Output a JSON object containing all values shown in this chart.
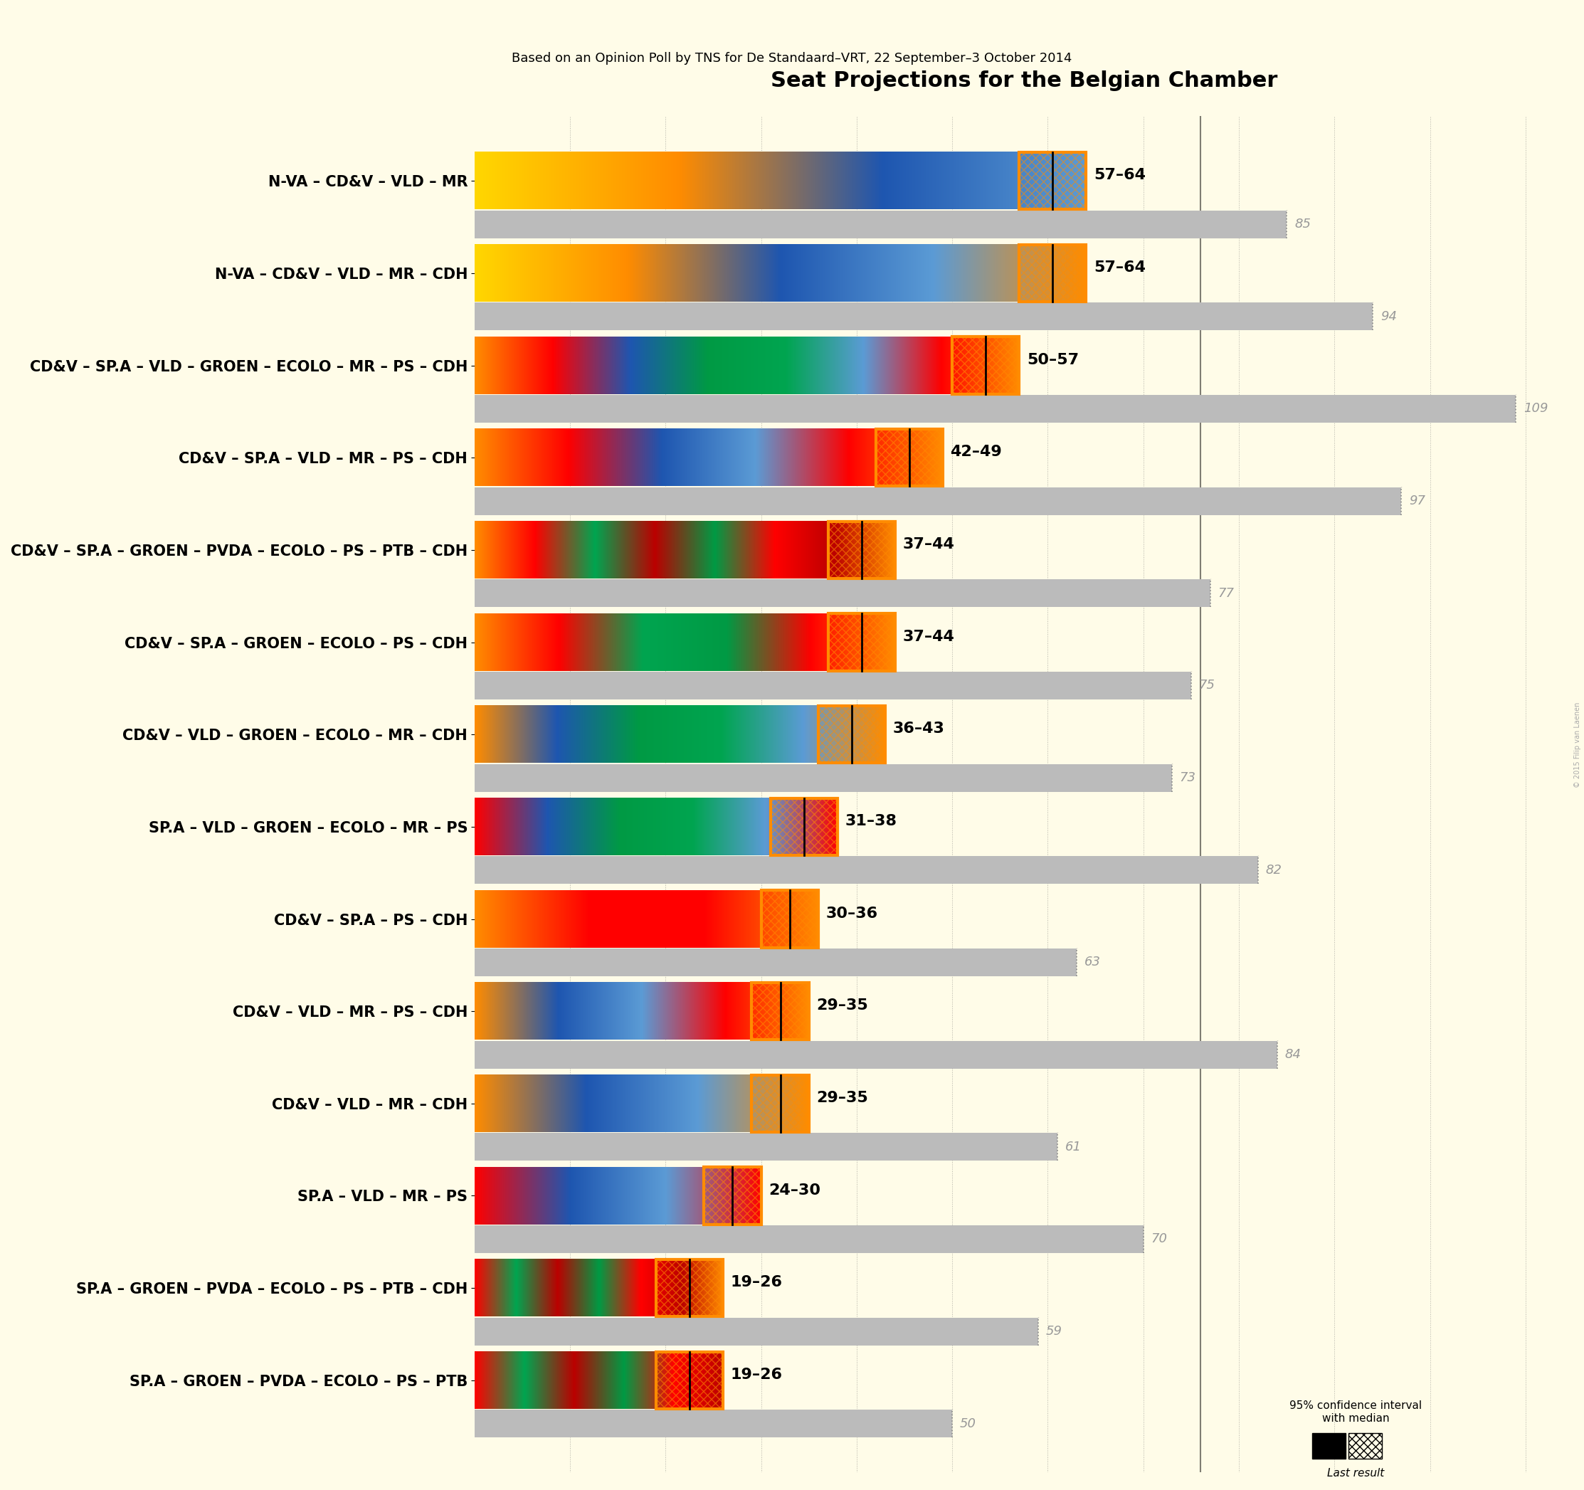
{
  "title": "Seat Projections for the Belgian Chamber",
  "subtitle": "Based on an Opinion Poll by TNS for De Standaard–VRT, 22 September–3 October 2014",
  "background_color": "#FFFCE8",
  "coalitions": [
    {
      "name": "N-VA – CD&V – VLD – MR",
      "low": 57,
      "high": 64,
      "last": 85
    },
    {
      "name": "N-VA – CD&V – VLD – MR – CDH",
      "low": 57,
      "high": 64,
      "last": 94
    },
    {
      "name": "CD&V – SP.A – VLD – GROEN – ECOLO – MR – PS – CDH",
      "low": 50,
      "high": 57,
      "last": 109
    },
    {
      "name": "CD&V – SP.A – VLD – MR – PS – CDH",
      "low": 42,
      "high": 49,
      "last": 97
    },
    {
      "name": "CD&V – SP.A – GROEN – PVDA – ECOLO – PS – PTB – CDH",
      "low": 37,
      "high": 44,
      "last": 77
    },
    {
      "name": "CD&V – SP.A – GROEN – ECOLO – PS – CDH",
      "low": 37,
      "high": 44,
      "last": 75
    },
    {
      "name": "CD&V – VLD – GROEN – ECOLO – MR – CDH",
      "low": 36,
      "high": 43,
      "last": 73
    },
    {
      "name": "SP.A – VLD – GROEN – ECOLO – MR – PS",
      "low": 31,
      "high": 38,
      "last": 82
    },
    {
      "name": "CD&V – SP.A – PS – CDH",
      "low": 30,
      "high": 36,
      "last": 63
    },
    {
      "name": "CD&V – VLD – MR – PS – CDH",
      "low": 29,
      "high": 35,
      "last": 84
    },
    {
      "name": "CD&V – VLD – MR – CDH",
      "low": 29,
      "high": 35,
      "last": 61
    },
    {
      "name": "SP.A – VLD – MR – PS",
      "low": 24,
      "high": 30,
      "last": 70
    },
    {
      "name": "SP.A – GROEN – PVDA – ECOLO – PS – PTB – CDH",
      "low": 19,
      "high": 26,
      "last": 59
    },
    {
      "name": "SP.A – GROEN – PVDA – ECOLO – PS – PTB",
      "low": 19,
      "high": 26,
      "last": 50
    }
  ],
  "bar_stripe_colors": [
    [
      "#FFD700",
      "#FF8C00",
      "#1E56B0",
      "#5B9BD5"
    ],
    [
      "#FFD700",
      "#FF8C00",
      "#1E56B0",
      "#5B9BD5",
      "#FF8C00"
    ],
    [
      "#FF8C00",
      "#FF0000",
      "#1E56B0",
      "#009A44",
      "#00A550",
      "#5B9BD5",
      "#FF0000",
      "#FF8C00"
    ],
    [
      "#FF8C00",
      "#FF0000",
      "#1E56B0",
      "#5B9BD5",
      "#FF0000",
      "#FF8C00"
    ],
    [
      "#FF8C00",
      "#FF0000",
      "#00A550",
      "#BB0000",
      "#009A44",
      "#FF0000",
      "#BB0000",
      "#FF8C00"
    ],
    [
      "#FF8C00",
      "#FF0000",
      "#00A550",
      "#009A44",
      "#FF0000",
      "#FF8C00"
    ],
    [
      "#FF8C00",
      "#1E56B0",
      "#009A44",
      "#00A550",
      "#5B9BD5",
      "#FF8C00"
    ],
    [
      "#FF0000",
      "#1E56B0",
      "#009A44",
      "#00A550",
      "#5B9BD5",
      "#FF0000"
    ],
    [
      "#FF8C00",
      "#FF0000",
      "#FF0000",
      "#FF8C00"
    ],
    [
      "#FF8C00",
      "#1E56B0",
      "#5B9BD5",
      "#FF0000",
      "#FF8C00"
    ],
    [
      "#FF8C00",
      "#1E56B0",
      "#5B9BD5",
      "#FF8C00"
    ],
    [
      "#FF0000",
      "#1E56B0",
      "#5B9BD5",
      "#FF0000"
    ],
    [
      "#FF0000",
      "#00A550",
      "#BB0000",
      "#009A44",
      "#FF0000",
      "#BB0000",
      "#FF8C00"
    ],
    [
      "#FF0000",
      "#00A550",
      "#BB0000",
      "#009A44",
      "#FF0000",
      "#BB0000"
    ]
  ],
  "majority": 76,
  "xmax": 115,
  "bar_height": 0.62,
  "gray_bar_height": 0.3,
  "gray_bar_color": "#BBBBBB",
  "ci_color": "#FF8C00",
  "confidence_label": "95% confidence interval\nwith median",
  "last_result_label": "Last result",
  "title_fontsize": 22,
  "subtitle_fontsize": 13,
  "label_fontsize": 15,
  "range_fontsize": 16,
  "last_fontsize": 13
}
